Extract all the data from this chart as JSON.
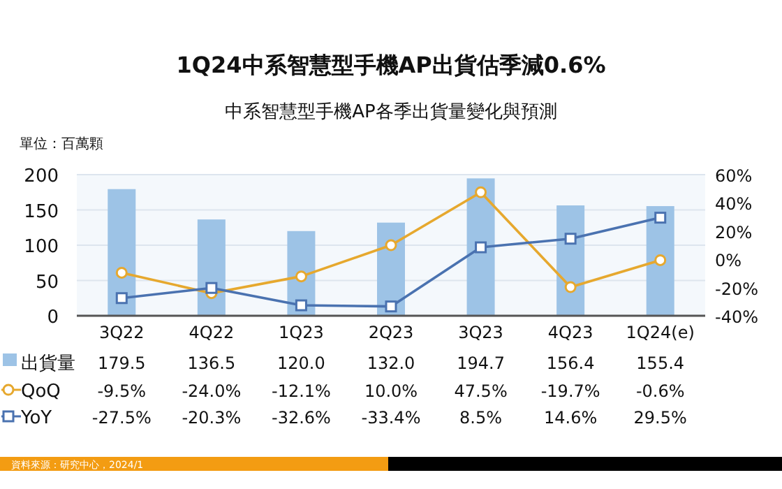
{
  "chart_data": {
    "type": "bar",
    "title": "1Q24中系智慧型手機AP出貨估季減0.6%",
    "subtitle": "中系智慧型手機AP各季出貨量變化與預測",
    "ylabel": "單位：百萬顆",
    "categories": [
      "3Q22",
      "4Q22",
      "1Q23",
      "2Q23",
      "3Q23",
      "4Q23",
      "1Q24(e)"
    ],
    "series": [
      {
        "name": "出貨量",
        "color": "#9dc3e6",
        "values": [
          179.5,
          136.5,
          120.0,
          132.0,
          194.7,
          156.4,
          155.4
        ],
        "value_labels": [
          "179.5",
          "136.5",
          "120.0",
          "132.0",
          "194.7",
          "156.4",
          "155.4"
        ]
      },
      {
        "name": "QoQ",
        "type": "line",
        "axis": "y2",
        "marker": "circle",
        "color": "#e6a82e",
        "values": [
          -9.5,
          -24.0,
          -12.1,
          10.0,
          47.5,
          -19.7,
          -0.6
        ],
        "value_labels": [
          "-9.5%",
          "-24.0%",
          "-12.1%",
          "10.0%",
          "47.5%",
          "-19.7%",
          "-0.6%"
        ]
      },
      {
        "name": "YoY",
        "type": "line",
        "axis": "y2",
        "marker": "square",
        "color": "#4a72b0",
        "values": [
          -27.5,
          -20.3,
          -32.6,
          -33.4,
          8.5,
          14.6,
          29.5
        ],
        "value_labels": [
          "-27.5%",
          "-20.3%",
          "-32.6%",
          "-33.4%",
          "8.5%",
          "14.6%",
          "29.5%"
        ]
      }
    ],
    "ylim": [
      0,
      200
    ],
    "yticks": [
      0,
      50,
      100,
      150,
      200
    ],
    "y2lim": [
      -40,
      60
    ],
    "y2ticks": [
      {
        "value": -40,
        "label": "-40%"
      },
      {
        "value": -20,
        "label": "-20%"
      },
      {
        "value": 0,
        "label": "0%"
      },
      {
        "value": 20,
        "label": "20%"
      },
      {
        "value": 40,
        "label": "40%"
      },
      {
        "value": 60,
        "label": "60%"
      }
    ],
    "grid": "y",
    "legend": "bottom left",
    "annotations": [
      "資料來源：研究中心，2024/1"
    ]
  }
}
